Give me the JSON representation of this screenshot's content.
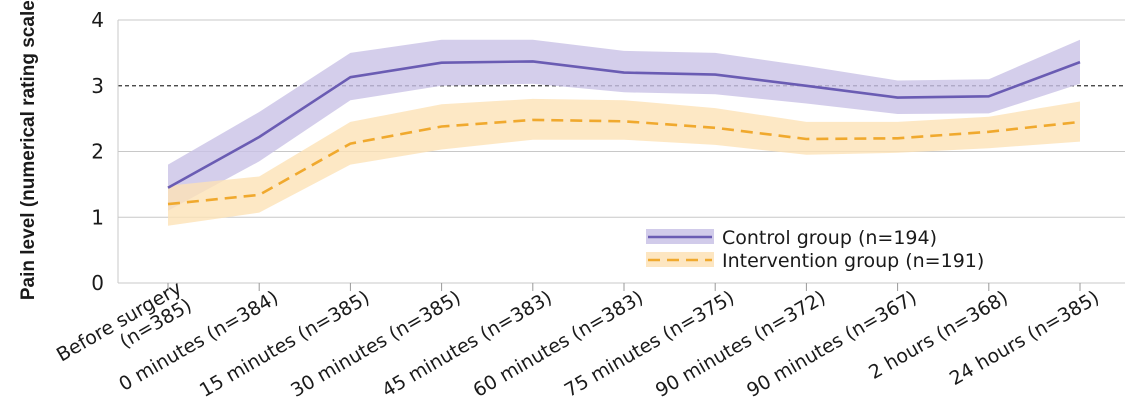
{
  "chart_data": {
    "type": "line",
    "ylabel": "Pain level (numerical rating scale)",
    "xlabel": "",
    "ylim": [
      0,
      4
    ],
    "yticks": [
      "0",
      "1",
      "2",
      "3",
      "4"
    ],
    "reference_line": 3,
    "categories": [
      [
        "Before surgery",
        "(n=385)"
      ],
      [
        "0 minutes (n=384)"
      ],
      [
        "15 minutes (n=385)"
      ],
      [
        "30 minutes (n=385)"
      ],
      [
        "45 minutes (n=383)"
      ],
      [
        "60 minutes (n=383)"
      ],
      [
        "75 minutes (n=375)"
      ],
      [
        "90 minutes (n=372)"
      ],
      [
        "90 minutes (n=367)"
      ],
      [
        "2 hours (n=368)"
      ],
      [
        "24 hours (n=385)"
      ]
    ],
    "series": [
      {
        "name": "Control group (n=194)",
        "color": "#6a5cb3",
        "band_color": "#c9c2e6",
        "dashed": false,
        "values": [
          1.45,
          2.22,
          3.13,
          3.35,
          3.37,
          3.2,
          3.17,
          3.0,
          2.82,
          2.84,
          3.36
        ],
        "lower": [
          1.1,
          1.85,
          2.78,
          3.0,
          3.03,
          2.9,
          2.87,
          2.73,
          2.57,
          2.58,
          3.03
        ],
        "upper": [
          1.8,
          2.6,
          3.5,
          3.7,
          3.7,
          3.53,
          3.5,
          3.3,
          3.08,
          3.1,
          3.7
        ]
      },
      {
        "name": "Intervention group (n=191)",
        "color": "#f0a92e",
        "band_color": "#fde2b6",
        "dashed": true,
        "values": [
          1.2,
          1.34,
          2.12,
          2.38,
          2.48,
          2.46,
          2.36,
          2.19,
          2.2,
          2.3,
          2.45
        ],
        "lower": [
          0.87,
          1.07,
          1.8,
          2.03,
          2.18,
          2.18,
          2.1,
          1.95,
          1.98,
          2.05,
          2.15
        ],
        "upper": [
          1.48,
          1.62,
          2.45,
          2.72,
          2.8,
          2.78,
          2.66,
          2.45,
          2.45,
          2.53,
          2.76
        ]
      }
    ],
    "legend_position": "bottom-right"
  }
}
